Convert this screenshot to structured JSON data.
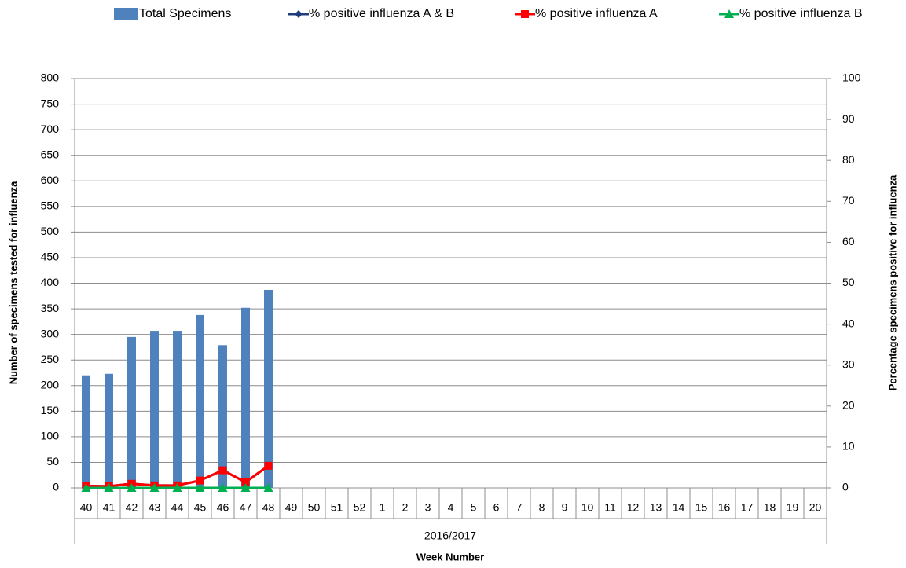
{
  "chart_data": {
    "type": "bar",
    "categories": [
      "40",
      "41",
      "42",
      "43",
      "44",
      "45",
      "46",
      "47",
      "48",
      "49",
      "50",
      "51",
      "52",
      "1",
      "2",
      "3",
      "4",
      "5",
      "6",
      "7",
      "8",
      "9",
      "10",
      "11",
      "12",
      "13",
      "14",
      "15",
      "16",
      "17",
      "18",
      "19",
      "20"
    ],
    "group_label": "2016/2017",
    "x_label": "Week Number",
    "y_label": "Number of specimens tested for influenza",
    "y2_label": "Percentage specimens positive for influenza",
    "ylim": [
      0,
      800
    ],
    "yticks": [
      0,
      50,
      100,
      150,
      200,
      250,
      300,
      350,
      400,
      450,
      500,
      550,
      600,
      650,
      700,
      750,
      800
    ],
    "y2lim": [
      0,
      100
    ],
    "y2ticks": [
      0,
      10,
      20,
      30,
      40,
      50,
      60,
      70,
      80,
      90,
      100
    ],
    "grid": true,
    "series": [
      {
        "name": "Total Specimens",
        "type": "bar",
        "color": "#4f81bd",
        "values": [
          220,
          223,
          295,
          307,
          307,
          338,
          279,
          352,
          387,
          null,
          null,
          null,
          null,
          null,
          null,
          null,
          null,
          null,
          null,
          null,
          null,
          null,
          null,
          null,
          null,
          null,
          null,
          null,
          null,
          null,
          null,
          null,
          null
        ]
      },
      {
        "name": "% positive influenza A & B",
        "type": "line",
        "axis": "y2",
        "color": "#1f3d7a",
        "marker": "diamond",
        "values": [
          0.5,
          0.4,
          1.0,
          0.6,
          0.6,
          1.8,
          4.3,
          1.4,
          5.4,
          null,
          null,
          null,
          null,
          null,
          null,
          null,
          null,
          null,
          null,
          null,
          null,
          null,
          null,
          null,
          null,
          null,
          null,
          null,
          null,
          null,
          null,
          null,
          null
        ]
      },
      {
        "name": "% positive influenza A",
        "type": "line",
        "axis": "y2",
        "color": "#ff0000",
        "marker": "square",
        "values": [
          0.5,
          0.4,
          1.0,
          0.6,
          0.6,
          1.8,
          4.3,
          1.4,
          5.4,
          null,
          null,
          null,
          null,
          null,
          null,
          null,
          null,
          null,
          null,
          null,
          null,
          null,
          null,
          null,
          null,
          null,
          null,
          null,
          null,
          null,
          null,
          null,
          null
        ]
      },
      {
        "name": "% positive influenza B",
        "type": "line",
        "axis": "y2",
        "color": "#00b050",
        "marker": "triangle",
        "values": [
          0,
          0,
          0,
          0,
          0,
          0,
          0,
          0,
          0,
          null,
          null,
          null,
          null,
          null,
          null,
          null,
          null,
          null,
          null,
          null,
          null,
          null,
          null,
          null,
          null,
          null,
          null,
          null,
          null,
          null,
          null,
          null,
          null
        ]
      }
    ]
  }
}
